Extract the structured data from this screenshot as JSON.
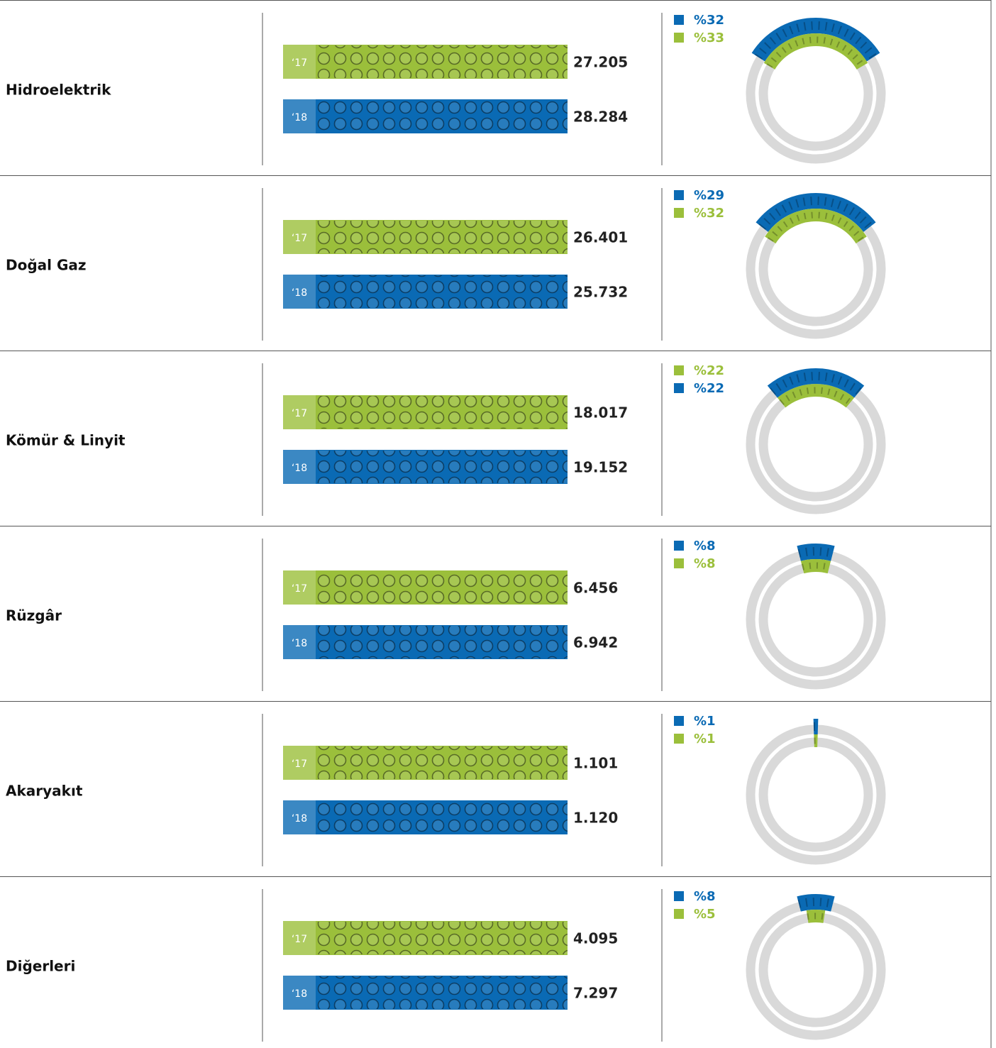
{
  "rows": [
    {
      "label": "Hidroelektrik",
      "bars": [
        {
          "year": "‘17",
          "value": "27.205",
          "color": "#9bbf3b"
        },
        {
          "year": "‘18",
          "value": "28.284",
          "color": "#0a6ab4"
        }
      ],
      "shares": [
        {
          "value": 32,
          "label": "%32",
          "color": "#0a6ab4"
        },
        {
          "value": 33,
          "label": "%33",
          "color": "#9bbf3b"
        }
      ]
    },
    {
      "label": "Doğal Gaz",
      "bars": [
        {
          "year": "‘17",
          "value": "26.401",
          "color": "#9bbf3b"
        },
        {
          "year": "‘18",
          "value": "25.732",
          "color": "#0a6ab4"
        }
      ],
      "shares": [
        {
          "value": 29,
          "label": "%29",
          "color": "#0a6ab4"
        },
        {
          "value": 32,
          "label": "%32",
          "color": "#9bbf3b"
        }
      ]
    },
    {
      "label": "Kömür & Linyit",
      "bars": [
        {
          "year": "‘17",
          "value": "18.017",
          "color": "#9bbf3b"
        },
        {
          "year": "‘18",
          "value": "19.152",
          "color": "#0a6ab4"
        }
      ],
      "shares": [
        {
          "value": 22,
          "label": "%22",
          "color": "#9bbf3b"
        },
        {
          "value": 22,
          "label": "%22",
          "color": "#0a6ab4"
        }
      ]
    },
    {
      "label": "Rüzgâr",
      "bars": [
        {
          "year": "‘17",
          "value": "6.456",
          "color": "#9bbf3b"
        },
        {
          "year": "‘18",
          "value": "6.942",
          "color": "#0a6ab4"
        }
      ],
      "shares": [
        {
          "value": 8,
          "label": "%8",
          "color": "#0a6ab4"
        },
        {
          "value": 8,
          "label": "%8",
          "color": "#9bbf3b"
        }
      ]
    },
    {
      "label": "Akaryakıt",
      "bars": [
        {
          "year": "‘17",
          "value": "1.101",
          "color": "#9bbf3b"
        },
        {
          "year": "‘18",
          "value": "1.120",
          "color": "#0a6ab4"
        }
      ],
      "shares": [
        {
          "value": 1,
          "label": "%1",
          "color": "#0a6ab4"
        },
        {
          "value": 1,
          "label": "%1",
          "color": "#9bbf3b"
        }
      ]
    },
    {
      "label": "Diğerleri",
      "bars": [
        {
          "year": "‘17",
          "value": "4.095",
          "color": "#9bbf3b"
        },
        {
          "year": "‘18",
          "value": "7.297",
          "color": "#0a6ab4"
        }
      ],
      "shares": [
        {
          "value": 8,
          "label": "%8",
          "color": "#0a6ab4"
        },
        {
          "value": 5,
          "label": "%5",
          "color": "#9bbf3b"
        }
      ]
    }
  ]
}
